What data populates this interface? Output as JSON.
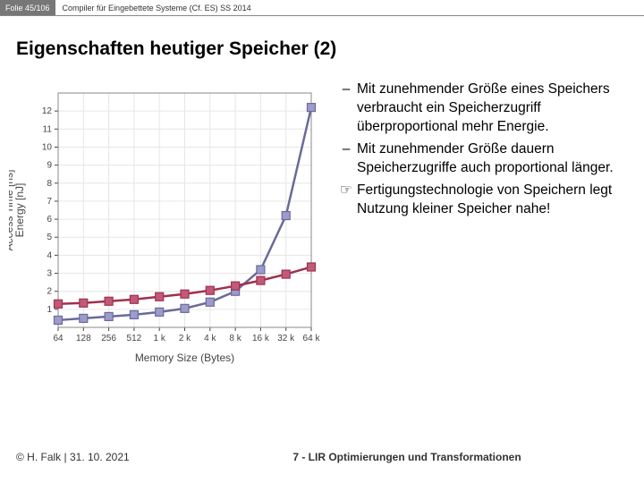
{
  "header": {
    "slide_number": "Folie 45/106",
    "course": "Compiler für Eingebettete Systeme (Cf. ES) SS 2014"
  },
  "title": "Eigenschaften heutiger Speicher (2)",
  "bullets": [
    {
      "mark": "–",
      "text": "Mit zunehmender Größe eines Speichers verbraucht ein Speicherzugriff überproportional mehr Energie."
    },
    {
      "mark": "–",
      "text": "Mit zunehmender Größe dauern Speicherzugriffe auch proportional länger."
    },
    {
      "mark": "☞",
      "text": "Fertigungstechnologie von Speichern legt Nutzung kleiner Speicher nahe!"
    }
  ],
  "footer": {
    "left": "© H. Falk | 31. 10. 2021",
    "right": "7 - LIR Optimierungen und Transformationen"
  },
  "chart": {
    "type": "line",
    "x_categories": [
      "64",
      "128",
      "256",
      "512",
      "1 k",
      "2 k",
      "4 k",
      "8 k",
      "16 k",
      "32 k",
      "64 k"
    ],
    "y_ticks": [
      1,
      2,
      3,
      4,
      5,
      6,
      7,
      8,
      9,
      10,
      11,
      12
    ],
    "ylim": [
      0,
      13
    ],
    "y_label": "Energy [nJ]\nAccess Time [ns]",
    "x_label": "Memory Size (Bytes)",
    "plot_bg": "#ffffff",
    "grid_color": "#e6e6e6",
    "series": [
      {
        "name": "energy",
        "color": "#6a6a99",
        "marker_fill": "#9b9bcc",
        "marker_stroke": "#6a6a99",
        "marker": "square",
        "line_width": 2.5,
        "values": [
          0.4,
          0.5,
          0.6,
          0.7,
          0.85,
          1.05,
          1.4,
          2.0,
          3.2,
          6.2,
          12.2
        ]
      },
      {
        "name": "access-time",
        "color": "#a03050",
        "marker_fill": "#c05a78",
        "marker_stroke": "#a03050",
        "marker": "square",
        "line_width": 2.5,
        "values": [
          1.3,
          1.35,
          1.45,
          1.55,
          1.7,
          1.85,
          2.05,
          2.3,
          2.6,
          2.95,
          3.35
        ]
      }
    ]
  }
}
